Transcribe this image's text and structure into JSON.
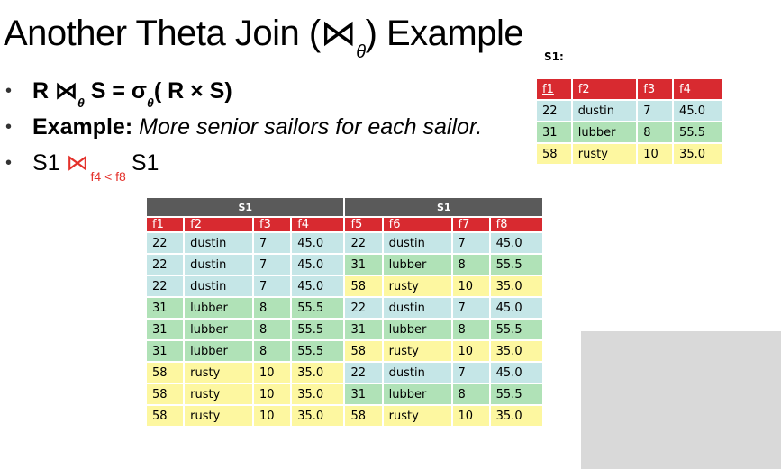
{
  "title": {
    "prefix": "Another Theta Join (⋈",
    "sub": "θ",
    "suffix": ") Example"
  },
  "bullets": {
    "b1": {
      "lead": "R ⋈",
      "sub": "θ",
      "mid": " S = σ",
      "sub2": "θ",
      "tail": "( R × S)"
    },
    "b2": {
      "bold": "Example:",
      "italic": "More senior sailors for each sailor."
    },
    "b3": {
      "lead": "S1 ",
      "op": "⋈",
      "cond": "f4 < f8",
      "tail": "S1"
    }
  },
  "small_table": {
    "caption": "S1:",
    "headers": [
      "f1",
      "f2",
      "f3",
      "f4"
    ],
    "rows": [
      [
        "22",
        "dustin",
        "7",
        "45.0"
      ],
      [
        "31",
        "lubber",
        "8",
        "55.5"
      ],
      [
        "58",
        "rusty",
        "10",
        "35.0"
      ]
    ],
    "row_colors": [
      "#c5e6e7",
      "#b0e2b7",
      "#fdf7a0"
    ]
  },
  "big_table": {
    "group_left": "S1",
    "group_right": "S1",
    "headers": [
      "f1",
      "f2",
      "f3",
      "f4",
      "f5",
      "f6",
      "f7",
      "f8"
    ],
    "rows": [
      [
        "22",
        "dustin",
        "7",
        "45.0",
        "22",
        "dustin",
        "7",
        "45.0"
      ],
      [
        "22",
        "dustin",
        "7",
        "45.0",
        "31",
        "lubber",
        "8",
        "55.5"
      ],
      [
        "22",
        "dustin",
        "7",
        "45.0",
        "58",
        "rusty",
        "10",
        "35.0"
      ],
      [
        "31",
        "lubber",
        "8",
        "55.5",
        "22",
        "dustin",
        "7",
        "45.0"
      ],
      [
        "31",
        "lubber",
        "8",
        "55.5",
        "31",
        "lubber",
        "8",
        "55.5"
      ],
      [
        "31",
        "lubber",
        "8",
        "55.5",
        "58",
        "rusty",
        "10",
        "35.0"
      ],
      [
        "58",
        "rusty",
        "10",
        "35.0",
        "22",
        "dustin",
        "7",
        "45.0"
      ],
      [
        "58",
        "rusty",
        "10",
        "35.0",
        "31",
        "lubber",
        "8",
        "55.5"
      ],
      [
        "58",
        "rusty",
        "10",
        "35.0",
        "58",
        "rusty",
        "10",
        "35.0"
      ]
    ],
    "colors": {
      "blue": "#c5e6e7",
      "green": "#b0e2b7",
      "yellow": "#fdf7a0",
      "header_red": "#d82a30",
      "group_gray": "#5a5a5a"
    }
  }
}
